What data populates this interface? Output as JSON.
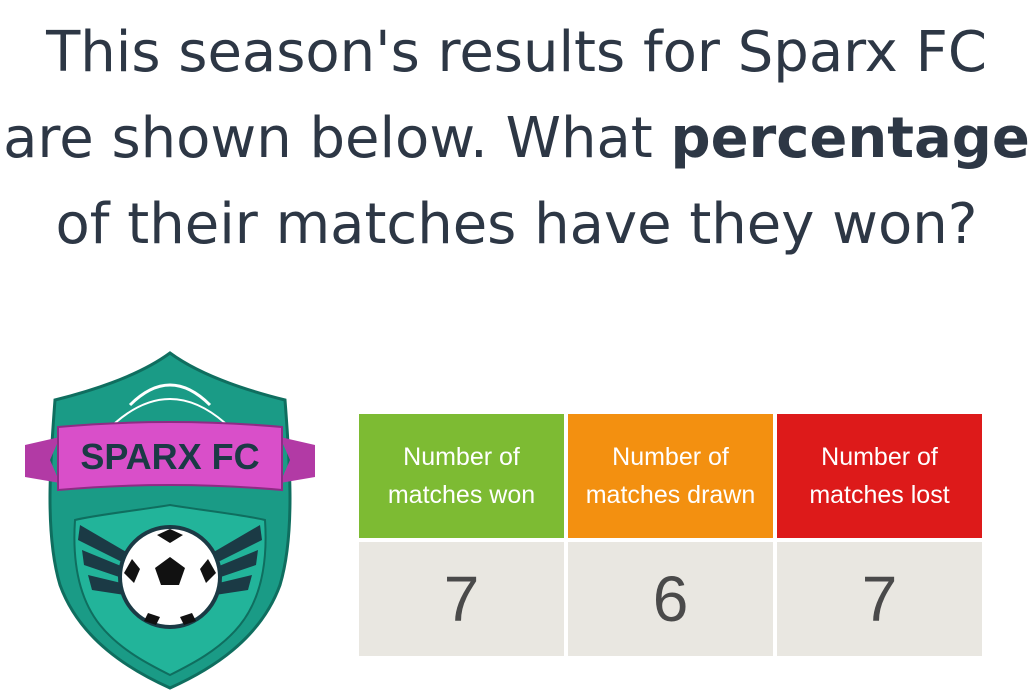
{
  "question": {
    "line1": "This season's results for Sparx FC",
    "line2_pre": "are shown below. What ",
    "line2_bold": "percentage",
    "line3": "of their matches have they won?"
  },
  "logo": {
    "banner_text": "SPARX FC",
    "shield_color": "#1a9b86",
    "banner_color": "#d94fc9"
  },
  "results_table": {
    "headers": [
      {
        "line1": "Number of",
        "line2": "matches won",
        "color": "#7dbb33"
      },
      {
        "line1": "Number of",
        "line2": "matches drawn",
        "color": "#f39010"
      },
      {
        "line1": "Number of",
        "line2": "matches lost",
        "color": "#dd1a1a"
      }
    ],
    "values": [
      "7",
      "6",
      "7"
    ]
  }
}
